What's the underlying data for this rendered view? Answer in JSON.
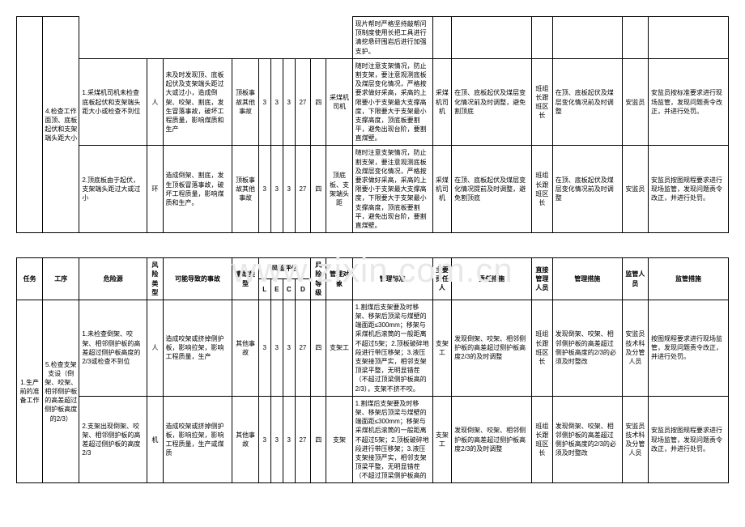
{
  "watermark": "www.zixin.com.cn",
  "header": {
    "task": "任务",
    "step": "工序",
    "hazard": "危险源",
    "riskType": "风险类型",
    "accident": "可能导致的事故",
    "accidentType": "事故类型",
    "riskEval": "风险评估",
    "L": "L",
    "E": "E",
    "C": "C",
    "D": "D",
    "riskLevel": "风险等级",
    "manageObj": "管理对象",
    "manageStd": "管理标准",
    "mainResp": "主要责任人",
    "respMeasure": "责任措施",
    "directMgr": "直接管理人员",
    "mgrMeasure": "管理措施",
    "supervisor": "监管人员",
    "supMeasure": "监管措施"
  },
  "t1": {
    "step": "4.检查工作面顶、底板起伏和支架端头距大小",
    "rows": [
      {
        "stdTop": "现片帮时严格坚持敲帮问顶制度使用长把工具进行清挖悬矸围岩后进行加强支护。"
      },
      {
        "hazard": "1.采煤机司机未检查底板起伏和支架端头距大小或检查不到位",
        "rtype": "人",
        "acc": "未及时发现顶、底板起伏及支架端头距过大或过小，造成倒架、咬架、割底，发生冒落事故，破坏工程质量，影响煤质和生产",
        "atype": "顶板事故其他事故",
        "L": "3",
        "E": "3",
        "C": "3",
        "D": "27",
        "lev": "四",
        "obj": "采煤机司机",
        "std": "随时注意支架情况，防止割支架，要注意观测底板及煤层变化情况，严格按要求做好采高，采高的上限要小于支架最大支撑高度，下限要大于支架最小支撑高度，顶底板要割平，避免出现台阶，要割直煤壁。",
        "resp": "采煤机司机",
        "rmeas": "在顶、底板起伏及煤层变化情况前及时调整，避免割顶底",
        "mgr": "班组长跟班区长",
        "mmeas": "在顶、底板起伏及煤层变化情况前及时调整",
        "sup": "安监员",
        "smeas": "安监员按标准要求进行现场监管，发现问题责令改正，并进行处罚。"
      },
      {
        "hazard": "2.顶底板由于起伏，支架端头距过大或过小",
        "rtype": "环",
        "acc": "造成倒架、割底，发生顶板冒落事故，破坏工程质量，影响煤质和生产。",
        "atype": "顶板事故其他事故",
        "L": "3",
        "E": "3",
        "C": "3",
        "D": "27",
        "lev": "四",
        "obj": "顶底板、支架端头距",
        "std": "随时注意支架情况，防止割支架，要注意观测底板及煤层变化情况，严格按要求做好采高，采高的上限要小于支架最大支撑高度，下限要大于支架最小支撑高度，顶底板要割平，避免出现台阶，要割直煤壁。",
        "resp": "采煤机司机",
        "rmeas": "在顶、底板起伏及煤层变化情况提前及时调整，避免割顶底",
        "mgr": "班组长跟班区长",
        "mmeas": "在顶、底板起伏及煤层变化情况前及时调整",
        "sup": "安监员",
        "smeas": "安监员按图规程要求进行现场监管，发现问题责令改正，并进行处罚。"
      }
    ]
  },
  "t2": {
    "task": "1.生产前的准备工作",
    "step": "5.检查支架支设（倒架、咬架、相邻侧护板的高差超过侧护板高度的2/3）",
    "rows": [
      {
        "hazard": "1.未检查倒架、咬架、相邻侧护板的高差超过侧护板高度的2/3或检查不到位",
        "rtype": "人",
        "acc": "造成咬架或挤掉侧护板，影响拉架，影响工程质量，生产",
        "atype": "其他事故",
        "L": "3",
        "E": "3",
        "C": "3",
        "D": "27",
        "lev": "四",
        "obj": "支架工",
        "std": "1.割煤后支架要及时移架、移架后顶梁与煤壁的端面距≤300mm；移架与采煤机后滚筒的一般距离不超过5架；2.顶板破碎地段进行带压移架；3.液压支架接顶严实，相邻支架顶梁平整，无明显错茬（不超过顶梁侧护板高的2/3），支架不挤不咬。",
        "resp": "支架工",
        "rmeas": "发现倒架、咬架、相邻侧护板的高差超过侧护板高度2/3的及时调整",
        "mgr": "班组长跟班区长",
        "mmeas": "发现倒架、咬架、相邻侧护板的高差超过侧护板高度的2/3的必须及时整改",
        "sup": "安监员技术科及分管人员",
        "smeas": "按图规程要求进行现场监管，发现问题责令改正，并进行处罚。"
      },
      {
        "hazard": "2.支架出现倒架、咬架、相邻侧护板的高差超过侧护板的高度2/3",
        "rtype": "机",
        "acc": "造成咬架或挤掉侧护板，影响拉架，影响工程质量，生产或煤质",
        "atype": "其他事故",
        "L": "3",
        "E": "3",
        "C": "3",
        "D": "27",
        "lev": "四",
        "obj": "支架",
        "std": "1.割煤后支架要及时移架、移架后顶梁与煤壁的端面距≤300mm；移架与采煤机后滚筒的一般距离不超过5架；2.顶板破碎地段进行带压移架；3.液压支架接顶严实，相邻支架顶梁平整，无明显错茬（不超过顶梁侧护板高的",
        "resp": "支架工",
        "rmeas": "发现倒架、咬架、相邻侧护板的高差超过侧护板高度2/3的及时调整",
        "mgr": "班组长跟班区长",
        "mmeas": "发现倒架、咬架、相邻侧护板的高差超过侧护板高度的2/3的必须及时整改",
        "sup": "安监员技术科及分管人员",
        "smeas": "安监员按图规程要求进行现场监管，发现问题责令改正，并进行处罚。"
      }
    ]
  }
}
